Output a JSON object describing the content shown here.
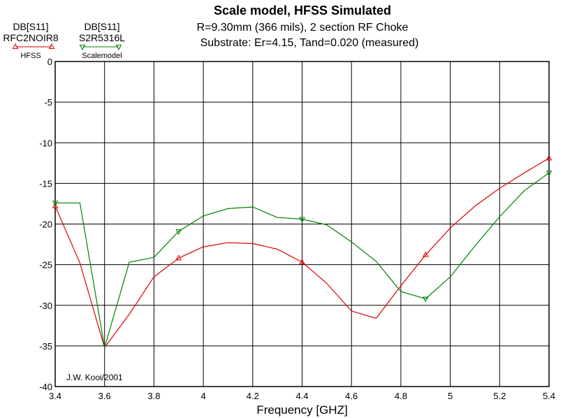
{
  "header": {
    "title": "Scale model, HFSS Simulated",
    "line1": "R=9.30mm (366 mils), 2 section RF Choke",
    "line2": "Substrate: Er=4.15, Tand=0.020 (measured)"
  },
  "legend": [
    {
      "line1": "DB[S11]",
      "line2": "RFC2NOIR8",
      "name": "HFSS",
      "color": "#e00000",
      "marker": "triangle-up"
    },
    {
      "line1": "DB[S11]",
      "line2": "S2R5316L",
      "name": "Scalemodel",
      "color": "#008000",
      "marker": "triangle-down"
    }
  ],
  "chart_data": {
    "type": "line",
    "title": "Scale model, HFSS Simulated",
    "xlabel": "Frequency [GHZ]",
    "ylabel": "",
    "xlim": [
      3.4,
      5.4
    ],
    "ylim": [
      -40,
      0
    ],
    "grid": true,
    "xticks": [
      3.4,
      3.6,
      3.8,
      4,
      4.2,
      4.4,
      4.6,
      4.8,
      5,
      5.2,
      5.4
    ],
    "xtick_labels": [
      "3.4",
      "3.6",
      "3.8",
      "4",
      "4.2",
      "4.4",
      "4.6",
      "4.8",
      "5",
      "5.2",
      "5.4"
    ],
    "yticks": [
      0,
      -5,
      -10,
      -15,
      -20,
      -25,
      -30,
      -35,
      -40
    ],
    "ytick_labels": [
      "0",
      "-5",
      "-10",
      "-15",
      "-20",
      "-25",
      "-30",
      "-35",
      "-40"
    ],
    "annotation": "J.W. Kooi/2001",
    "series": [
      {
        "name": "HFSS",
        "color": "#e00000",
        "x": [
          3.4,
          3.5,
          3.6,
          3.7,
          3.8,
          3.9,
          4.0,
          4.1,
          4.2,
          4.3,
          4.4,
          4.5,
          4.6,
          4.7,
          4.8,
          4.9,
          5.0,
          5.1,
          5.2,
          5.3,
          5.4
        ],
        "y": [
          -17.8,
          -24.8,
          -35.2,
          -31.1,
          -26.5,
          -24.2,
          -22.8,
          -22.3,
          -22.4,
          -23.1,
          -24.7,
          -27.3,
          -30.7,
          -31.6,
          -27.6,
          -23.8,
          -20.5,
          -17.8,
          -15.6,
          -13.7,
          -11.9
        ],
        "markers_x": [
          3.4,
          3.9,
          4.4,
          4.9,
          5.4
        ],
        "markers_y": [
          -17.8,
          -24.2,
          -24.7,
          -23.8,
          -11.9
        ]
      },
      {
        "name": "Scalemodel",
        "color": "#008000",
        "x": [
          3.4,
          3.5,
          3.6,
          3.7,
          3.8,
          3.9,
          4.0,
          4.1,
          4.2,
          4.3,
          4.4,
          4.5,
          4.6,
          4.7,
          4.8,
          4.9,
          5.0,
          5.1,
          5.2,
          5.3,
          5.4
        ],
        "y": [
          -17.4,
          -17.4,
          -35.2,
          -24.7,
          -24.1,
          -20.9,
          -19.0,
          -18.1,
          -17.9,
          -19.2,
          -19.4,
          -20.1,
          -22.2,
          -24.6,
          -28.3,
          -29.2,
          -26.5,
          -22.7,
          -19.1,
          -15.9,
          -13.7
        ],
        "markers_x": [
          3.4,
          3.9,
          4.4,
          4.9,
          5.4
        ],
        "markers_y": [
          -17.4,
          -20.9,
          -19.4,
          -29.2,
          -13.7
        ]
      }
    ]
  }
}
